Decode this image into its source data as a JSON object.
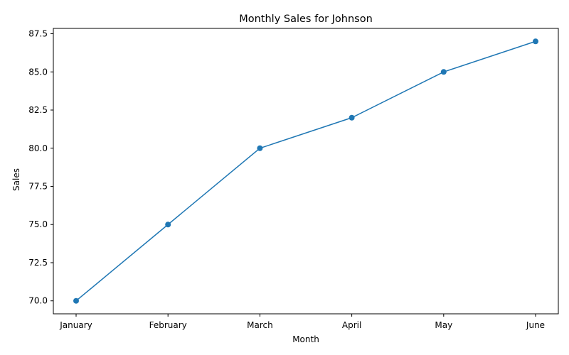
{
  "chart_data": {
    "type": "line",
    "title": "Monthly Sales for Johnson",
    "xlabel": "Month",
    "ylabel": "Sales",
    "categories": [
      "January",
      "February",
      "March",
      "April",
      "May",
      "June"
    ],
    "series": [
      {
        "values": [
          70,
          75,
          80,
          82,
          85,
          87
        ],
        "color": "#1f77b4",
        "marker": "circle"
      }
    ],
    "ylim": [
      69.15,
      87.85
    ],
    "yticks": [
      70.0,
      72.5,
      75.0,
      77.5,
      80.0,
      82.5,
      85.0,
      87.5
    ],
    "ytick_labels": [
      "70.0",
      "72.5",
      "75.0",
      "77.5",
      "80.0",
      "82.5",
      "85.0",
      "87.5"
    ],
    "grid": false,
    "legend": "none"
  }
}
